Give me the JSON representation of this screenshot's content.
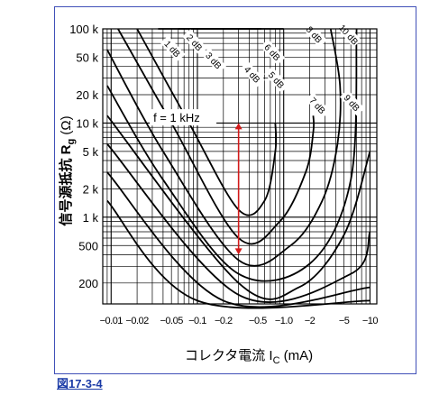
{
  "caption": "図17-3-4",
  "chart_data": {
    "type": "line",
    "xlabel": "コレクタ電流 I",
    "xlabel_sub": "C",
    "xlabel_unit": " (mA)",
    "ylabel": "信号源抵抗 R",
    "ylabel_sub": "g",
    "ylabel_unit": " (Ω)",
    "x_scale": "log",
    "y_scale": "log",
    "xlim": [
      0.008,
      12
    ],
    "ylim": [
      120,
      100000
    ],
    "x_ticks": [
      {
        "value": 0.01,
        "label": "−0.01"
      },
      {
        "value": 0.02,
        "label": "−0.02"
      },
      {
        "value": 0.05,
        "label": "−0.05"
      },
      {
        "value": 0.1,
        "label": "−0.1"
      },
      {
        "value": 0.2,
        "label": "−0.2"
      },
      {
        "value": 0.5,
        "label": "−0.5"
      },
      {
        "value": 1,
        "label": "−1.0"
      },
      {
        "value": 2,
        "label": "−2"
      },
      {
        "value": 5,
        "label": "−5"
      },
      {
        "value": 10,
        "label": "−10"
      }
    ],
    "y_ticks": [
      {
        "value": 200,
        "label": "200"
      },
      {
        "value": 500,
        "label": "500"
      },
      {
        "value": 1000,
        "label": "1 k"
      },
      {
        "value": 2000,
        "label": "2 k"
      },
      {
        "value": 5000,
        "label": "5 k"
      },
      {
        "value": 10000,
        "label": "10 k"
      },
      {
        "value": 20000,
        "label": "20 k"
      },
      {
        "value": 50000,
        "label": "50 k"
      },
      {
        "value": 100000,
        "label": "100 k"
      }
    ],
    "grid": true,
    "annotation": "f = 1 kHz",
    "arrow": {
      "x": 0.3,
      "y_from": 10000,
      "y_to": 400,
      "color": "#d21a1a"
    },
    "series": [
      {
        "name": "1 dB",
        "points": [
          [
            0.06,
            100000
          ],
          [
            0.55,
            100000
          ]
        ]
      },
      {
        "name": "2 dB",
        "points": [
          [
            0.035,
            100000
          ],
          [
            1.0,
            100000
          ]
        ]
      },
      {
        "name": "3 dB",
        "points": [
          [
            0.02,
            100000
          ],
          [
            0.08,
            10000
          ],
          [
            0.3,
            1200
          ],
          [
            0.6,
            1500
          ],
          [
            0.8,
            5000
          ],
          [
            0.8,
            10000
          ]
        ]
      },
      {
        "name": "4 dB",
        "points": [
          [
            0.012,
            100000
          ],
          [
            0.05,
            10000
          ],
          [
            0.3,
            600
          ],
          [
            0.9,
            900
          ],
          [
            1.8,
            3000
          ],
          [
            2.2,
            8000
          ],
          [
            2.2,
            12000
          ]
        ]
      },
      {
        "name": "5 dB",
        "points": [
          [
            0.009,
            60000
          ],
          [
            0.04,
            5000
          ],
          [
            0.3,
            350
          ],
          [
            1.2,
            500
          ],
          [
            2.8,
            1500
          ],
          [
            4.2,
            6000
          ],
          [
            4.5,
            25000
          ],
          [
            3.5,
            100000
          ]
        ]
      },
      {
        "name": "6 dB",
        "points": [
          [
            0.009,
            25000
          ],
          [
            0.04,
            2500
          ],
          [
            0.3,
            250
          ],
          [
            2,
            320
          ],
          [
            6,
            2500
          ],
          [
            7,
            100000
          ]
        ]
      },
      {
        "name": "7 dB",
        "points": [
          [
            0.009,
            12000
          ],
          [
            0.3,
            200
          ],
          [
            1.5,
            180
          ],
          [
            5,
            650
          ],
          [
            10,
            5000
          ]
        ]
      },
      {
        "name": "8 dB",
        "points": [
          [
            0.009,
            6000
          ],
          [
            0.3,
            150
          ],
          [
            6,
            250
          ],
          [
            10,
            700
          ]
        ]
      },
      {
        "name": "9 dB",
        "points": [
          [
            0.009,
            3000
          ],
          [
            0.2,
            130
          ],
          [
            10,
            180
          ]
        ]
      },
      {
        "name": "10 dB",
        "points": [
          [
            0.009,
            1500
          ],
          [
            0.1,
            130
          ],
          [
            10,
            130
          ]
        ]
      }
    ]
  }
}
